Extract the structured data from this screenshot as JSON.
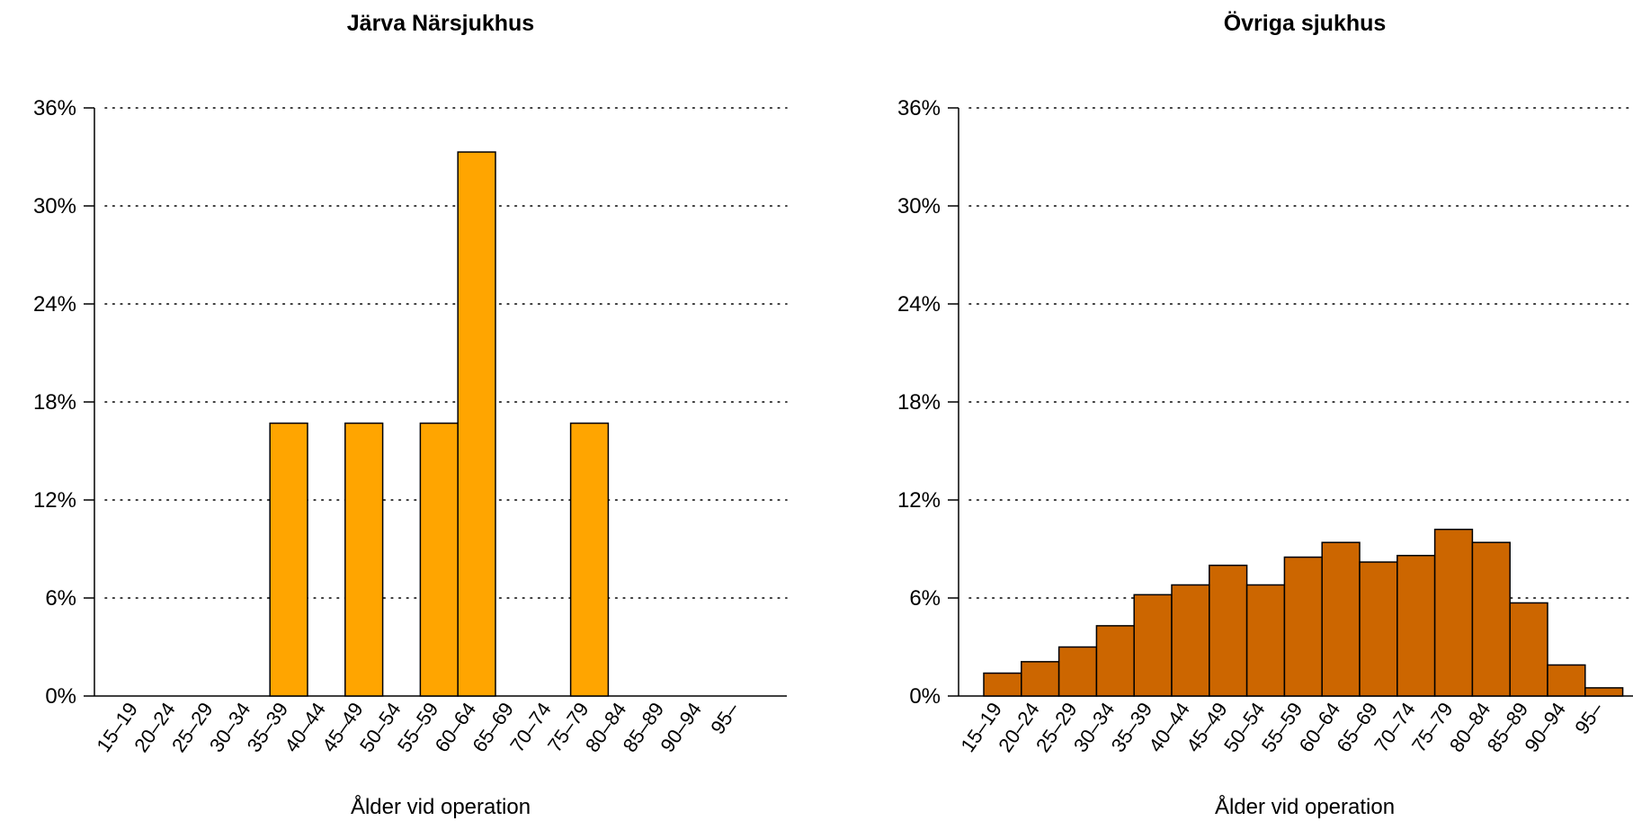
{
  "chart_data": [
    {
      "type": "bar",
      "title": "Järva Närsjukhus",
      "xlabel": "Ålder vid operation",
      "ylabel": "",
      "ylim": [
        0,
        36
      ],
      "yticks": [
        "0%",
        "6%",
        "12%",
        "18%",
        "24%",
        "30%",
        "36%"
      ],
      "grid": "dotted horizontal",
      "color": "#FFA500",
      "categories": [
        "15–19",
        "20–24",
        "25–29",
        "30–34",
        "35–39",
        "40–44",
        "45–49",
        "50–54",
        "55–59",
        "60–64",
        "65–69",
        "70–74",
        "75–79",
        "80–84",
        "85–89",
        "90–94",
        "95–"
      ],
      "values": [
        0,
        0,
        0,
        0,
        16.7,
        0,
        16.7,
        0,
        16.7,
        33.3,
        0,
        0,
        16.7,
        0,
        0,
        0,
        0
      ]
    },
    {
      "type": "bar",
      "title": "Övriga sjukhus",
      "xlabel": "Ålder vid operation",
      "ylabel": "",
      "ylim": [
        0,
        36
      ],
      "yticks": [
        "0%",
        "6%",
        "12%",
        "18%",
        "24%",
        "30%",
        "36%"
      ],
      "grid": "dotted horizontal",
      "color": "#CC6600",
      "categories": [
        "15–19",
        "20–24",
        "25–29",
        "30–34",
        "35–39",
        "40–44",
        "45–49",
        "50–54",
        "55–59",
        "60–64",
        "65–69",
        "70–74",
        "75–79",
        "80–84",
        "85–89",
        "90–94",
        "95–"
      ],
      "values": [
        1.4,
        2.1,
        3.0,
        4.3,
        6.2,
        6.8,
        8.0,
        6.8,
        8.5,
        9.4,
        8.2,
        8.6,
        10.2,
        9.4,
        5.7,
        1.9,
        0.5
      ]
    }
  ]
}
